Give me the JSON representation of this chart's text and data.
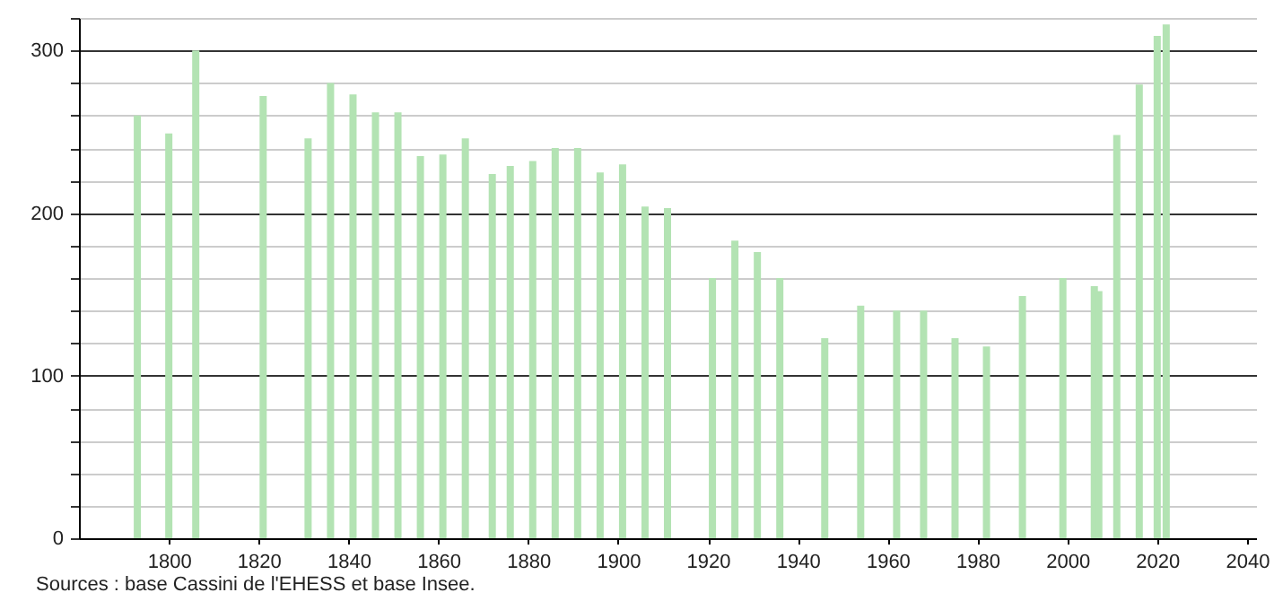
{
  "chart_data": {
    "type": "bar",
    "annotations": [
      "Sources : base Cassini de l'EHESS et base Insee."
    ],
    "x": [
      1793,
      1800,
      1806,
      1821,
      1831,
      1836,
      1841,
      1846,
      1851,
      1856,
      1861,
      1866,
      1872,
      1876,
      1881,
      1886,
      1891,
      1896,
      1901,
      1906,
      1911,
      1921,
      1926,
      1931,
      1936,
      1946,
      1954,
      1962,
      1968,
      1975,
      1982,
      1990,
      1999,
      2006,
      2007,
      2011,
      2016,
      2020,
      2022
    ],
    "values": [
      260,
      249,
      300,
      272,
      246,
      280,
      273,
      262,
      262,
      235,
      236,
      246,
      224,
      229,
      232,
      240,
      240,
      225,
      230,
      204,
      203,
      160,
      183,
      176,
      160,
      123,
      143,
      140,
      140,
      123,
      118,
      149,
      160,
      155,
      152,
      248,
      279,
      309,
      316
    ],
    "color": "#b3e3b3",
    "xlim": [
      1780,
      2042
    ],
    "xticks": [
      1800,
      1820,
      1840,
      1860,
      1880,
      1900,
      1920,
      1940,
      1960,
      1980,
      2000,
      2020,
      2040
    ],
    "ylim": [
      0,
      320
    ],
    "yticks": [
      0,
      {
        "value": 20,
        "label": null
      },
      {
        "value": 40,
        "label": null
      },
      {
        "value": 60,
        "label": null
      },
      {
        "value": 80,
        "label": null
      },
      100,
      {
        "value": 120,
        "label": null
      },
      {
        "value": 140,
        "label": null
      },
      {
        "value": 160,
        "label": null
      },
      {
        "value": 180,
        "label": null
      },
      200,
      {
        "value": 220,
        "label": null
      },
      {
        "value": 240,
        "label": null
      },
      {
        "value": 260,
        "label": null
      },
      {
        "value": 280,
        "label": null
      },
      300,
      {
        "value": 320,
        "label": null
      }
    ],
    "grid": "y"
  }
}
